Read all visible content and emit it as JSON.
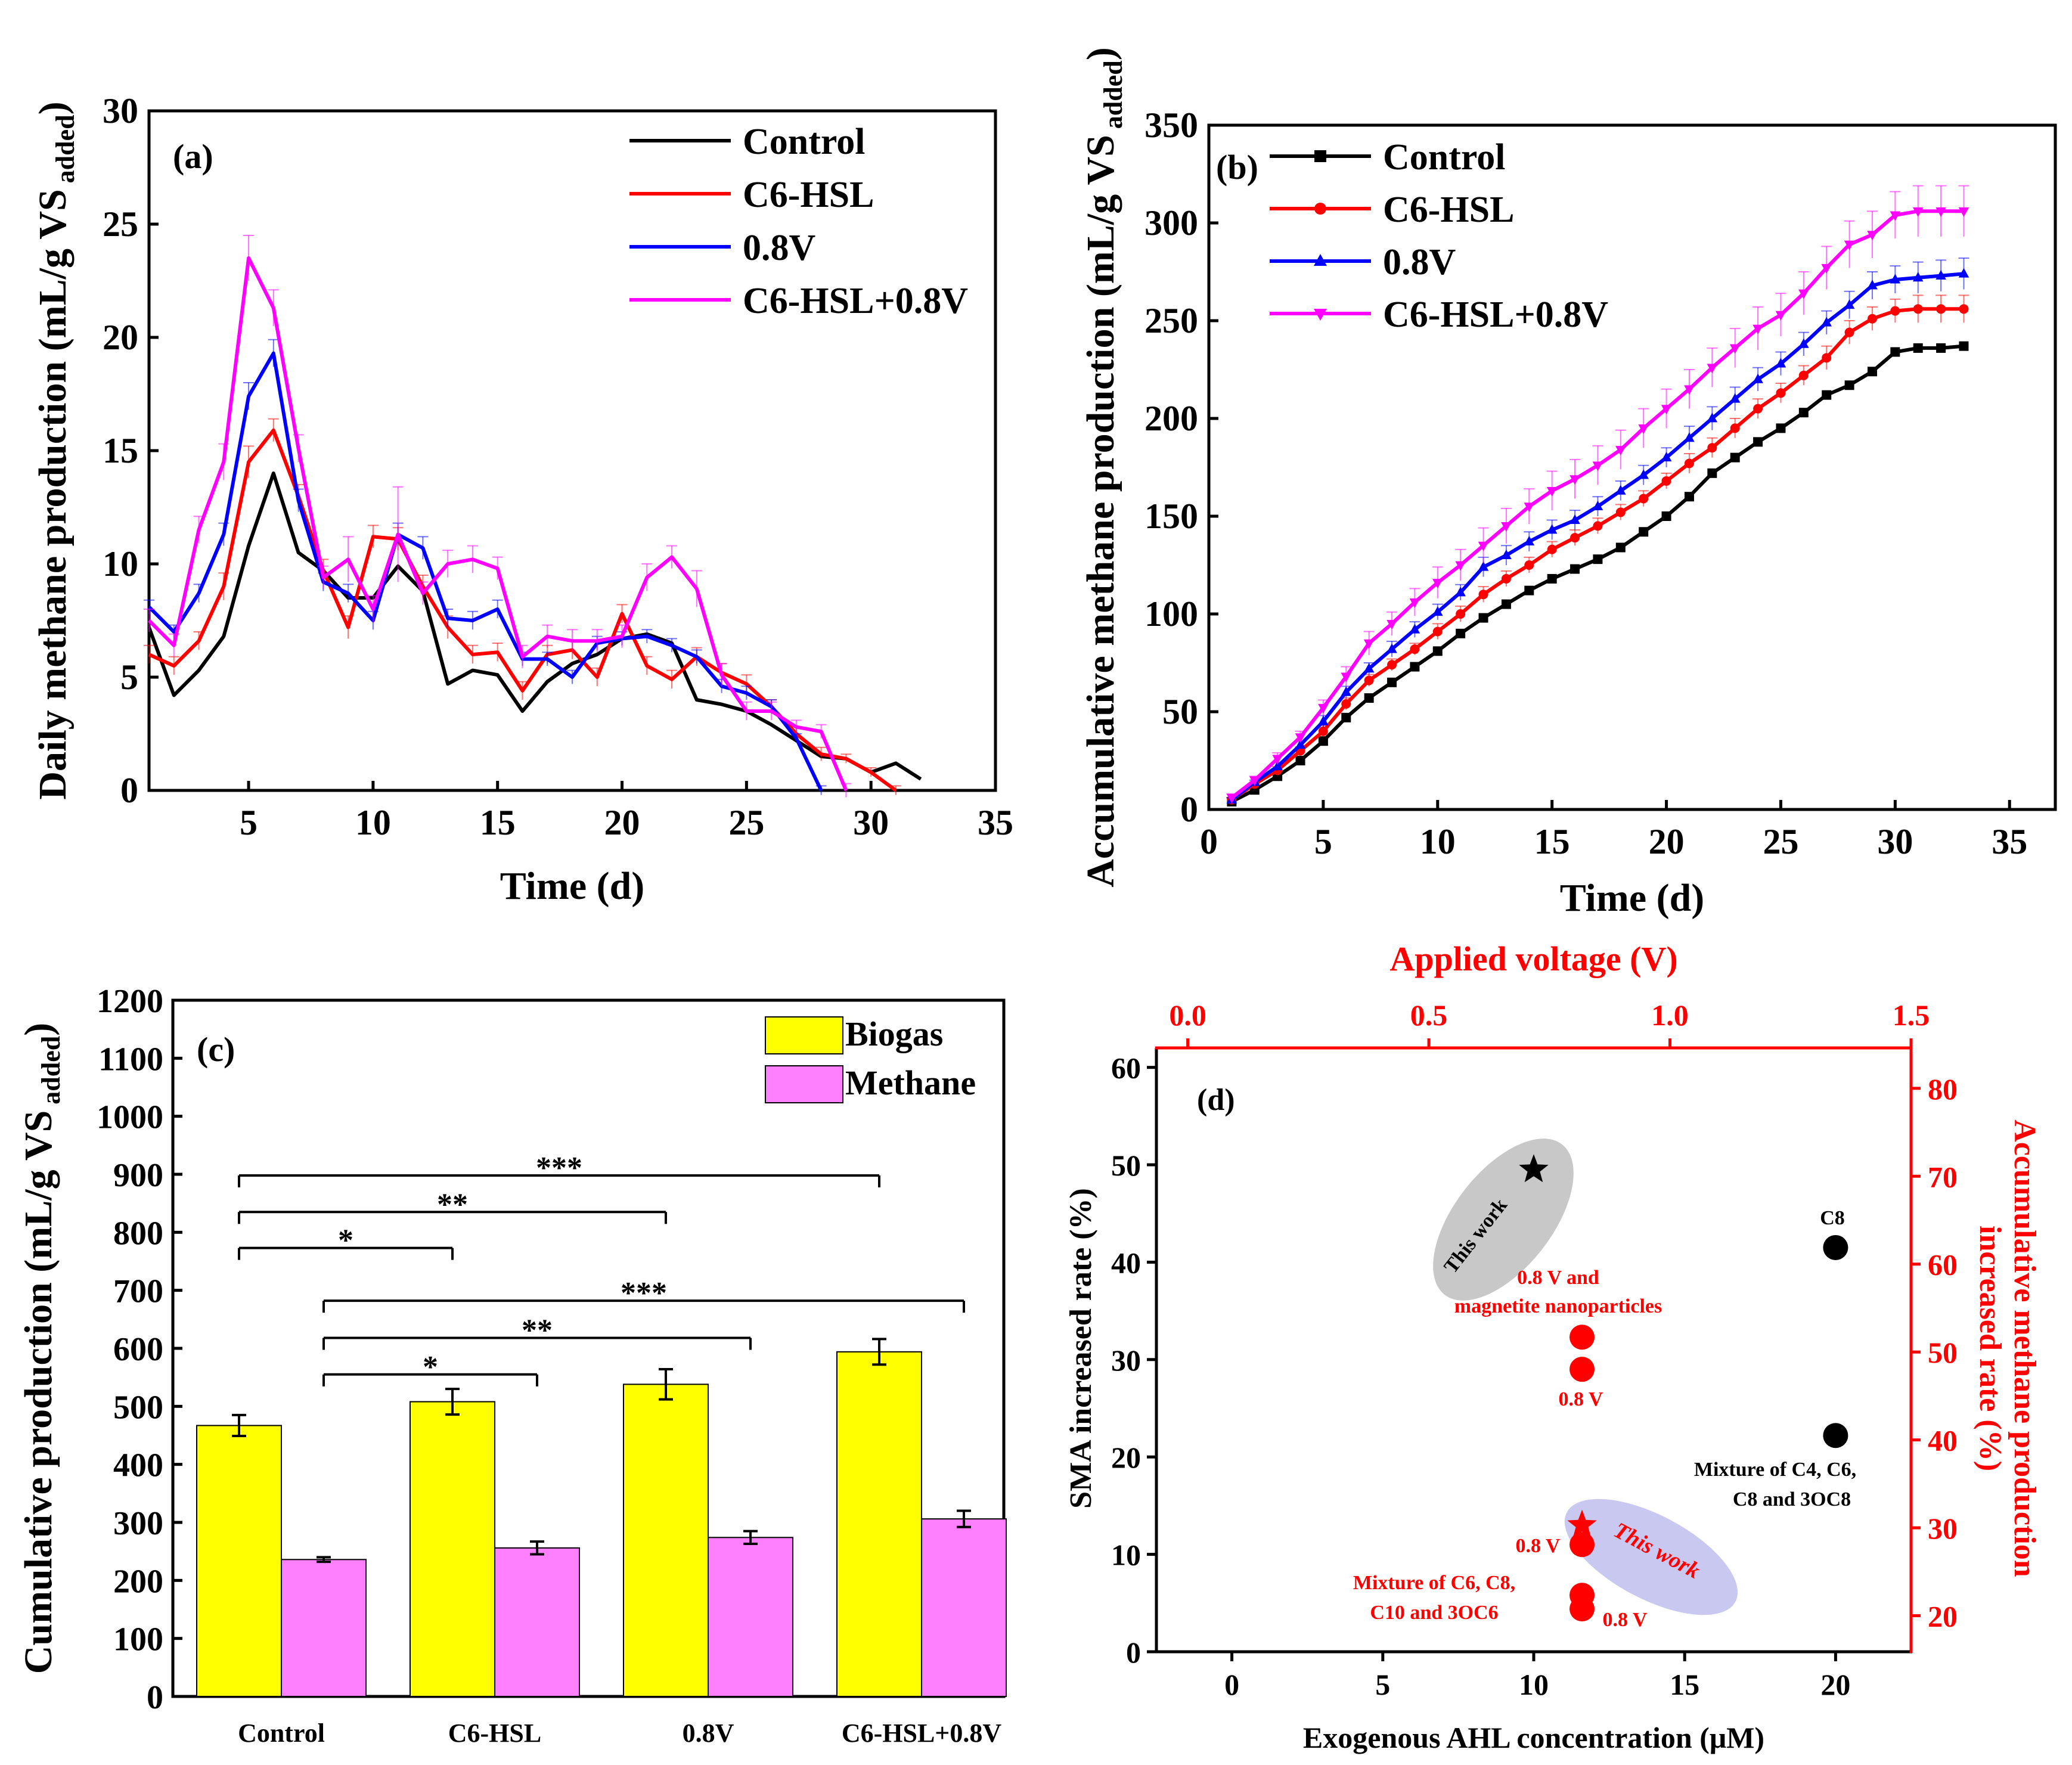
{
  "chart_data": [
    {
      "id": "a",
      "type": "line",
      "panel_label": "(a)",
      "xlabel": "Time (d)",
      "ylabel": "Daily methane production (mL/g VS",
      "ylabel_sub": "added",
      "ylabel_close": ")",
      "xlim": [
        1,
        35
      ],
      "ylim": [
        0,
        30
      ],
      "xticks": [
        5,
        10,
        15,
        20,
        25,
        30,
        35
      ],
      "yticks": [
        0,
        5,
        10,
        15,
        20,
        25,
        30
      ],
      "legend": [
        "Control",
        "C6-HSL",
        "0.8V",
        "C6-HSL+0.8V"
      ],
      "series": [
        {
          "name": "Control",
          "color": "#000000",
          "x": [
            1,
            2,
            3,
            4,
            5,
            6,
            7,
            8,
            9,
            10,
            11,
            12,
            13,
            14,
            15,
            16,
            17,
            18,
            19,
            20,
            21,
            22,
            23,
            24,
            25,
            26,
            27,
            28,
            29,
            30,
            31,
            32
          ],
          "values": [
            7.2,
            4.2,
            5.3,
            6.8,
            10.8,
            14.0,
            10.5,
            9.7,
            8.5,
            8.5,
            9.9,
            8.8,
            4.7,
            5.3,
            5.1,
            3.5,
            4.8,
            5.6,
            6.0,
            6.7,
            6.9,
            6.5,
            4.0,
            3.8,
            3.5,
            2.9,
            2.2,
            1.5,
            1.4,
            0.8,
            1.2,
            0.5
          ],
          "errors": []
        },
        {
          "name": "C6-HSL",
          "color": "#ff0000",
          "x": [
            1,
            2,
            3,
            4,
            5,
            6,
            7,
            8,
            9,
            10,
            11,
            12,
            13,
            14,
            15,
            16,
            17,
            18,
            19,
            20,
            21,
            22,
            23,
            24,
            25,
            26,
            27,
            28,
            29,
            30,
            31
          ],
          "values": [
            6.0,
            5.5,
            6.6,
            9.0,
            14.5,
            15.9,
            13.0,
            9.7,
            7.2,
            11.2,
            11.1,
            9.0,
            7.2,
            6.0,
            6.1,
            4.4,
            6.0,
            6.2,
            5.0,
            7.8,
            5.5,
            4.9,
            5.9,
            5.2,
            4.7,
            3.7,
            2.5,
            1.6,
            1.4,
            0.8,
            0.0
          ],
          "errors": [
            0.4,
            0.4,
            0.4,
            0.6,
            0.7,
            0.5,
            0.5,
            0.5,
            0.5,
            0.5,
            0.5,
            0.5,
            0.5,
            0.4,
            0.4,
            0.4,
            0.4,
            0.4,
            0.4,
            0.4,
            0.4,
            0.4,
            0.4,
            0.4,
            0.4,
            0.3,
            0.3,
            0.3,
            0.2,
            0.2,
            0.2
          ]
        },
        {
          "name": "0.8V",
          "color": "#0000ff",
          "x": [
            1,
            2,
            3,
            4,
            5,
            6,
            7,
            8,
            9,
            10,
            11,
            12,
            13,
            14,
            15,
            16,
            17,
            18,
            19,
            20,
            21,
            22,
            23,
            24,
            25,
            26,
            27,
            28
          ],
          "values": [
            8.1,
            7.0,
            8.7,
            11.3,
            17.4,
            19.3,
            12.8,
            9.2,
            8.7,
            7.5,
            11.3,
            10.7,
            7.6,
            7.5,
            8.0,
            5.8,
            5.8,
            5.0,
            6.5,
            6.7,
            6.8,
            6.4,
            5.9,
            4.6,
            4.3,
            3.7,
            2.3,
            0.0
          ],
          "errors": [
            0.3,
            0.3,
            0.4,
            0.5,
            0.6,
            0.6,
            0.5,
            0.4,
            0.4,
            0.4,
            0.5,
            0.5,
            0.4,
            0.4,
            0.4,
            0.3,
            0.3,
            0.3,
            0.3,
            0.3,
            0.3,
            0.3,
            0.3,
            0.3,
            0.3,
            0.3,
            0.2,
            0.2
          ]
        },
        {
          "name": "C6-HSL+0.8V",
          "color": "#ff00ff",
          "x": [
            1,
            2,
            3,
            4,
            5,
            6,
            7,
            8,
            9,
            10,
            11,
            12,
            13,
            14,
            15,
            16,
            17,
            18,
            19,
            20,
            21,
            22,
            23,
            24,
            25,
            26,
            27,
            28,
            29
          ],
          "values": [
            7.5,
            6.4,
            11.5,
            14.5,
            23.5,
            21.3,
            15.1,
            9.4,
            10.2,
            8.0,
            11.3,
            8.7,
            10.0,
            10.2,
            9.8,
            5.9,
            6.8,
            6.6,
            6.6,
            6.8,
            9.4,
            10.3,
            8.9,
            5.1,
            3.5,
            3.5,
            2.8,
            2.6,
            0.0
          ],
          "errors": [
            0.5,
            0.5,
            0.6,
            0.8,
            1.0,
            0.8,
            0.6,
            0.5,
            1.0,
            0.6,
            2.1,
            0.5,
            0.6,
            0.6,
            0.5,
            0.5,
            0.5,
            0.5,
            0.5,
            0.5,
            0.6,
            0.5,
            0.8,
            0.5,
            0.4,
            0.4,
            0.3,
            0.3,
            0.3
          ]
        }
      ]
    },
    {
      "id": "b",
      "type": "line",
      "panel_label": "(b)",
      "xlabel": "Time (d)",
      "ylabel": "Accumulative methane production (mL/g VS",
      "ylabel_sub": "added",
      "ylabel_close": ")",
      "xlim": [
        0,
        37
      ],
      "ylim": [
        0,
        350
      ],
      "xticks": [
        0,
        5,
        10,
        15,
        20,
        25,
        30,
        35
      ],
      "yticks": [
        0,
        50,
        100,
        150,
        200,
        250,
        300,
        350
      ],
      "legend": [
        "Control",
        "C6-HSL",
        "0.8V",
        "C6-HSL+0.8V"
      ],
      "x": [
        1,
        2,
        3,
        4,
        5,
        6,
        7,
        8,
        9,
        10,
        11,
        12,
        13,
        14,
        15,
        16,
        17,
        18,
        19,
        20,
        21,
        22,
        23,
        24,
        25,
        26,
        27,
        28,
        29,
        30,
        31,
        32,
        33
      ],
      "series": [
        {
          "name": "Control",
          "color": "#000000",
          "marker": "square",
          "values": [
            4,
            10,
            17,
            25,
            35,
            47,
            57,
            65,
            73,
            81,
            90,
            98,
            105,
            112,
            118,
            123,
            128,
            134,
            142,
            150,
            160,
            172,
            180,
            188,
            195,
            203,
            212,
            217,
            224,
            234,
            236,
            236,
            237
          ],
          "errors": []
        },
        {
          "name": "C6-HSL",
          "color": "#ff0000",
          "marker": "circle",
          "values": [
            5,
            13,
            20,
            30,
            40,
            54,
            66,
            74,
            82,
            91,
            100,
            110,
            118,
            125,
            133,
            139,
            145,
            152,
            159,
            168,
            177,
            185,
            195,
            205,
            213,
            222,
            231,
            244,
            251,
            255,
            256,
            256,
            256
          ],
          "errors": [
            1,
            1,
            2,
            2,
            3,
            3,
            3,
            3,
            3,
            4,
            4,
            4,
            4,
            4,
            4,
            4,
            4,
            4,
            4,
            4,
            5,
            5,
            5,
            5,
            5,
            5,
            6,
            6,
            6,
            6,
            7,
            7,
            7
          ]
        },
        {
          "name": "0.8V",
          "color": "#0000ff",
          "marker": "triangle-up",
          "values": [
            5,
            14,
            22,
            33,
            45,
            60,
            72,
            82,
            92,
            101,
            111,
            124,
            130,
            137,
            143,
            148,
            155,
            163,
            171,
            180,
            190,
            200,
            210,
            220,
            228,
            238,
            249,
            258,
            268,
            271,
            272,
            273,
            274
          ],
          "errors": [
            1,
            1,
            2,
            2,
            3,
            3,
            3,
            4,
            4,
            4,
            4,
            5,
            5,
            5,
            5,
            5,
            5,
            5,
            5,
            5,
            6,
            6,
            6,
            6,
            6,
            6,
            6,
            7,
            7,
            7,
            8,
            8,
            8
          ]
        },
        {
          "name": "C6-HSL+0.8V",
          "color": "#ff00ff",
          "marker": "triangle-down",
          "values": [
            6,
            15,
            26,
            37,
            52,
            68,
            85,
            95,
            106,
            116,
            125,
            135,
            145,
            155,
            163,
            169,
            176,
            184,
            195,
            205,
            215,
            226,
            236,
            246,
            253,
            264,
            277,
            289,
            294,
            304,
            306,
            306,
            306
          ],
          "errors": [
            2,
            2,
            3,
            3,
            4,
            5,
            6,
            6,
            7,
            8,
            8,
            9,
            9,
            9,
            10,
            10,
            10,
            10,
            10,
            10,
            10,
            10,
            10,
            11,
            11,
            11,
            11,
            12,
            12,
            12,
            13,
            13,
            13
          ]
        }
      ]
    },
    {
      "id": "c",
      "type": "bar",
      "panel_label": "(c)",
      "ylabel": "Cumulative production (mL/g VS",
      "ylabel_sub": "added",
      "ylabel_close": ")",
      "ylim": [
        0,
        1200
      ],
      "yticks": [
        0,
        100,
        200,
        300,
        400,
        500,
        600,
        700,
        800,
        900,
        1000,
        1100,
        1200
      ],
      "categories": [
        "Control",
        "C6-HSL",
        "0.8V",
        "C6-HSL+0.8V"
      ],
      "series": [
        {
          "name": "Biogas",
          "color": "#ffff00",
          "values": [
            467,
            508,
            538,
            594
          ],
          "errors": [
            18,
            22,
            26,
            22
          ]
        },
        {
          "name": "Methane",
          "color": "#ff80ff",
          "values": [
            236,
            256,
            274,
            306
          ],
          "errors": [
            4,
            11,
            11,
            14
          ]
        }
      ],
      "significance": [
        {
          "from": 0,
          "to": 1,
          "bar": "Biogas",
          "label": "*",
          "level": 773
        },
        {
          "from": 0,
          "to": 2,
          "bar": "Biogas",
          "label": "**",
          "level": 835
        },
        {
          "from": 0,
          "to": 3,
          "bar": "Biogas",
          "label": "***",
          "level": 898
        },
        {
          "from": 0,
          "to": 1,
          "bar": "Methane",
          "label": "*",
          "level": 555
        },
        {
          "from": 0,
          "to": 2,
          "bar": "Methane",
          "label": "**",
          "level": 618
        },
        {
          "from": 0,
          "to": 3,
          "bar": "Methane",
          "label": "***",
          "level": 682
        }
      ]
    },
    {
      "id": "d",
      "type": "scatter",
      "panel_label": "(d)",
      "xlabel": "Exogenous AHL concentration (μM)",
      "ylabel_left": "SMA increased rate (%)",
      "ylabel_right_1": "Accumulative methane production",
      "ylabel_right_2": "increased rate (%)",
      "xlabel_top": "Applied voltage (V)",
      "xlim": [
        -2.5,
        22.5
      ],
      "ylim_left": [
        0,
        62
      ],
      "ylim_right": [
        15.9,
        84.6
      ],
      "xlim_top": [
        -0.065,
        1.5
      ],
      "xticks": [
        0,
        5,
        10,
        15,
        20
      ],
      "yticks_left": [
        0,
        10,
        20,
        30,
        40,
        50,
        60
      ],
      "yticks_right": [
        20,
        30,
        40,
        50,
        60,
        70,
        80
      ],
      "xticks_top": [
        "0.0",
        "0.5",
        "1.0",
        "1.5"
      ],
      "points": [
        {
          "x": 20.0,
          "y": 41.5,
          "color": "#000000",
          "shape": "circle",
          "label": "C8"
        },
        {
          "x": 20.0,
          "y": 22.2,
          "color": "#000000",
          "shape": "circle",
          "label": "Mixture of C4, C6, C8 and 3OC8"
        },
        {
          "x": 11.6,
          "y": 32.3,
          "color": "#ff0000",
          "shape": "circle",
          "label": "0.8 V and magnetite nanoparticles"
        },
        {
          "x": 11.6,
          "y": 29.0,
          "color": "#ff0000",
          "shape": "circle",
          "label": "0.8 V"
        },
        {
          "x": 11.6,
          "y": 11.0,
          "color": "#ff0000",
          "shape": "circle",
          "label": "0.8 V"
        },
        {
          "x": 11.6,
          "y": 5.8,
          "color": "#ff0000",
          "shape": "circle",
          "label": "Mixture of C6, C8, C10 and 3OC6"
        },
        {
          "x": 11.6,
          "y": 4.4,
          "color": "#ff0000",
          "shape": "circle",
          "label": "0.8 V"
        },
        {
          "x": 10.0,
          "y": 49.5,
          "color": "#000000",
          "shape": "star",
          "label": "This work"
        },
        {
          "x": 11.6,
          "y": 13.0,
          "color": "#ff0000",
          "shape": "star",
          "label": "This work"
        }
      ],
      "annotations": {
        "c8": "C8",
        "mix1_line1": "Mixture of C4, C6,",
        "mix1_line2": "C8 and 3OC8",
        "mag_line1": "0.8 V and",
        "mag_line2": "magnetite nanoparticles",
        "v08_a": "0.8 V",
        "v08_b": "0.8 V",
        "v08_c": "0.8 V",
        "mix2_line1": "Mixture of C6, C8,",
        "mix2_line2": "C10 and 3OC6",
        "this_work_black": "This work",
        "this_work_red": "This work"
      }
    }
  ]
}
